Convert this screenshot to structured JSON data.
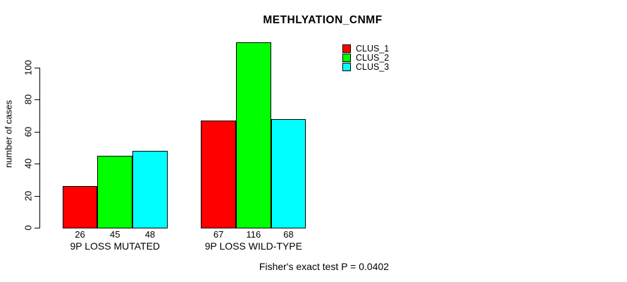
{
  "chart_data": {
    "type": "bar",
    "title": "METHLYATION_CNMF",
    "ylabel": "number of cases",
    "xlabel": "",
    "categories": [
      "9P LOSS MUTATED",
      "9P LOSS WILD-TYPE"
    ],
    "series": [
      {
        "name": "CLUS_1",
        "color": "#ff0000",
        "values": [
          26,
          67
        ]
      },
      {
        "name": "CLUS_2",
        "color": "#00ff00",
        "values": [
          45,
          116
        ]
      },
      {
        "name": "CLUS_3",
        "color": "#00ffff",
        "values": [
          48,
          68
        ]
      }
    ],
    "bar_value_labels": [
      [
        26,
        45,
        48
      ],
      [
        67,
        116,
        68
      ]
    ],
    "yticks": [
      0,
      20,
      40,
      60,
      80,
      100
    ],
    "ylim": [
      0,
      100
    ],
    "grid": false,
    "legend_position": "top-right",
    "annotation": "Fisher's exact test P = 0.0402"
  }
}
